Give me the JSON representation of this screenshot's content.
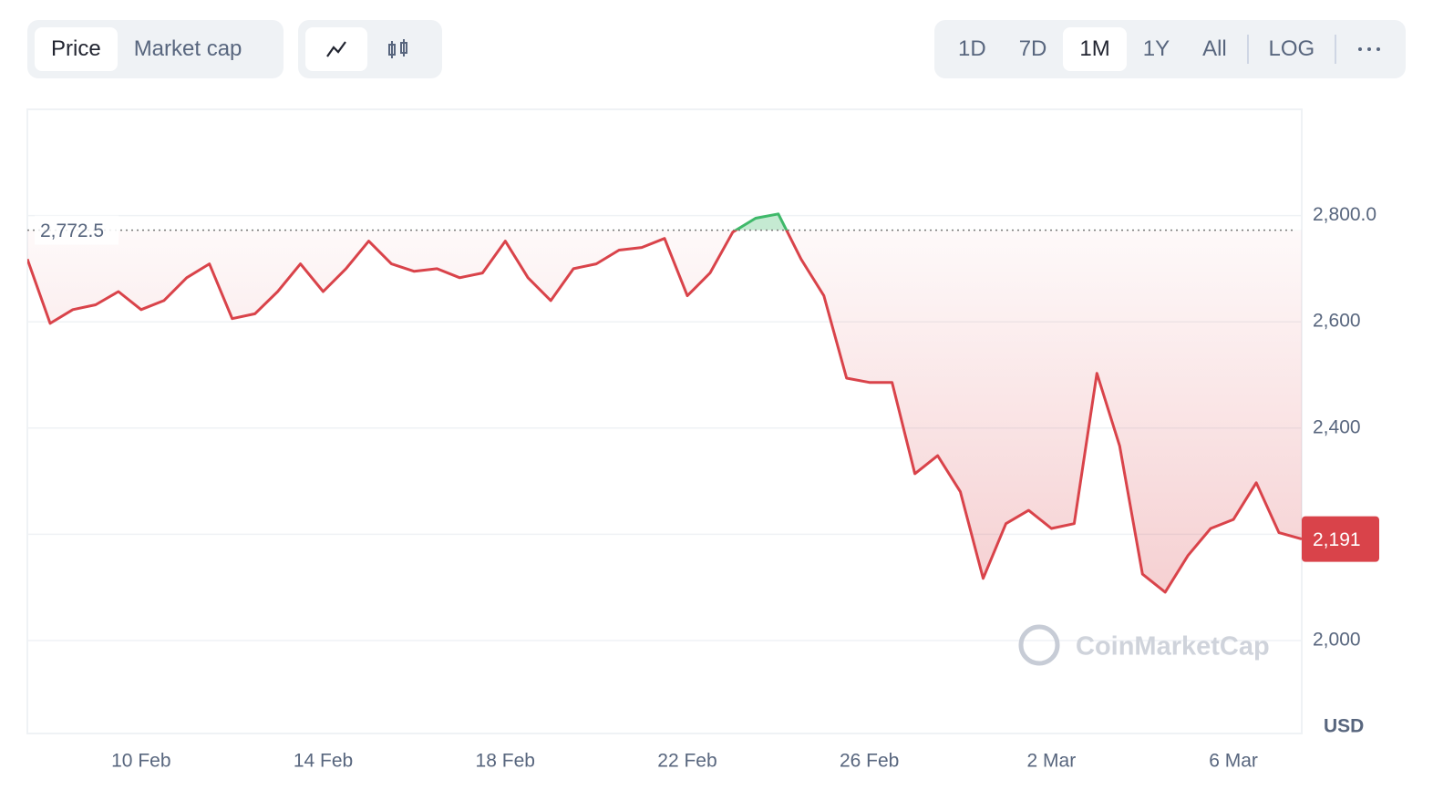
{
  "controls": {
    "metrics": [
      "Price",
      "Market cap"
    ],
    "active_metric": 0,
    "ranges": [
      "1D",
      "7D",
      "1M",
      "1Y",
      "All"
    ],
    "active_range": 2,
    "log": "LOG"
  },
  "chart_data": {
    "type": "line",
    "categories": [
      null,
      null,
      null,
      null,
      null,
      "10 Feb",
      null,
      null,
      null,
      null,
      null,
      null,
      null,
      "14 Feb",
      null,
      null,
      null,
      null,
      null,
      null,
      null,
      "18 Feb",
      null,
      null,
      null,
      null,
      null,
      null,
      null,
      "22 Feb",
      null,
      null,
      null,
      null,
      null,
      null,
      null,
      "26 Feb",
      null,
      null,
      null,
      null,
      null,
      null,
      null,
      "2 Mar",
      null,
      null,
      null,
      null,
      null,
      null,
      null,
      "6 Mar",
      null,
      null,
      null
    ],
    "values": [
      2718,
      2597,
      2623,
      2632,
      2657,
      2623,
      2640,
      2683,
      2709,
      2606,
      2615,
      2657,
      2709,
      2657,
      2700,
      2752,
      2709,
      2695,
      2700,
      2683,
      2692,
      2752,
      2683,
      2640,
      2700,
      2709,
      2735,
      2740,
      2757,
      2649,
      2692,
      2769,
      2795,
      2803,
      2718,
      2649,
      2494,
      2486,
      2486,
      2314,
      2348,
      2280,
      2117,
      2220,
      2245,
      2211,
      2220,
      2503,
      2366,
      2125,
      2091,
      2160,
      2211,
      2228,
      2297,
      2203,
      2191
    ],
    "color": "#d9434a",
    "up_color": "#3fb96a",
    "reference_value": 2772.5,
    "reference_label": "2,772.5",
    "last_label": "2,191",
    "ylim": [
      1825,
      3000
    ],
    "yticks": [
      {
        "value": 2000,
        "label": "2,000"
      },
      {
        "value": 2200,
        "label": null
      },
      {
        "value": 2400,
        "label": "2,400"
      },
      {
        "value": 2600,
        "label": "2,600"
      },
      {
        "value": 2800,
        "label": "2,800.0"
      }
    ],
    "unit": "USD",
    "grid": true,
    "watermark": "CoinMarketCap"
  }
}
